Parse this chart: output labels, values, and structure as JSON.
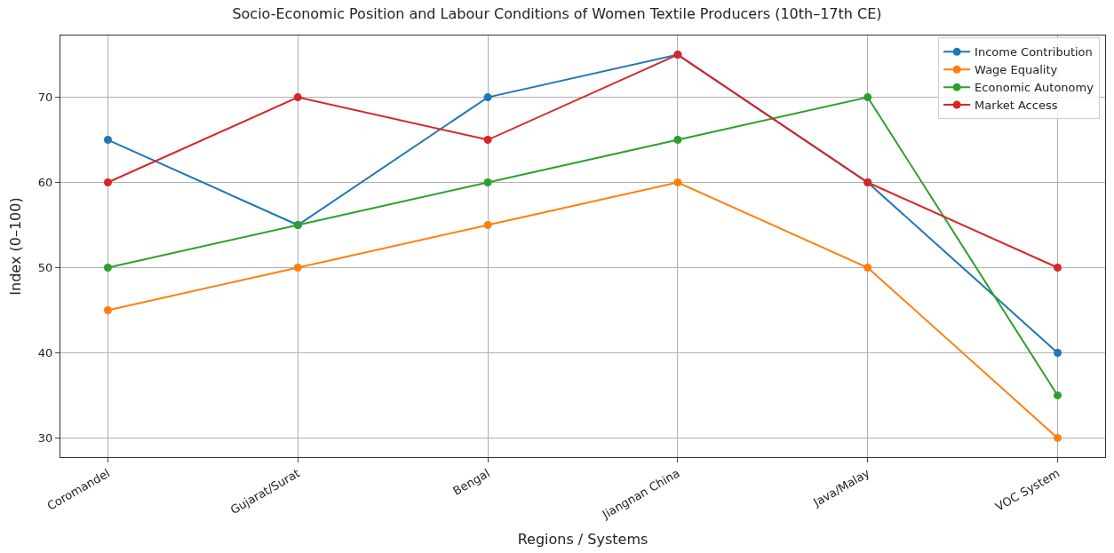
{
  "chart_data": {
    "type": "line",
    "title": "Socio-Economic Position and Labour Conditions of Women Textile Producers (10th–17th CE)",
    "xlabel": "Regions / Systems",
    "ylabel": "Index (0–100)",
    "categories": [
      "Coromandel",
      "Gujarat/Surat",
      "Bengal",
      "Jiangnan China",
      "Java/Malay",
      "VOC System"
    ],
    "series": [
      {
        "name": "Income Contribution",
        "color": "#1f77b4",
        "values": [
          65,
          55,
          70,
          75,
          60,
          40
        ]
      },
      {
        "name": "Wage Equality",
        "color": "#ff7f0e",
        "values": [
          45,
          50,
          55,
          60,
          50,
          30
        ]
      },
      {
        "name": "Economic Autonomy",
        "color": "#2ca02c",
        "values": [
          50,
          55,
          60,
          65,
          70,
          35
        ]
      },
      {
        "name": "Market Access",
        "color": "#d62728",
        "values": [
          60,
          70,
          65,
          75,
          60,
          50
        ]
      }
    ],
    "ylim": [
      27.75,
      77.25
    ],
    "yticks": [
      30,
      40,
      50,
      60,
      70
    ],
    "grid": true,
    "legend": "top right",
    "marker": "circle",
    "line_style": "solid"
  }
}
